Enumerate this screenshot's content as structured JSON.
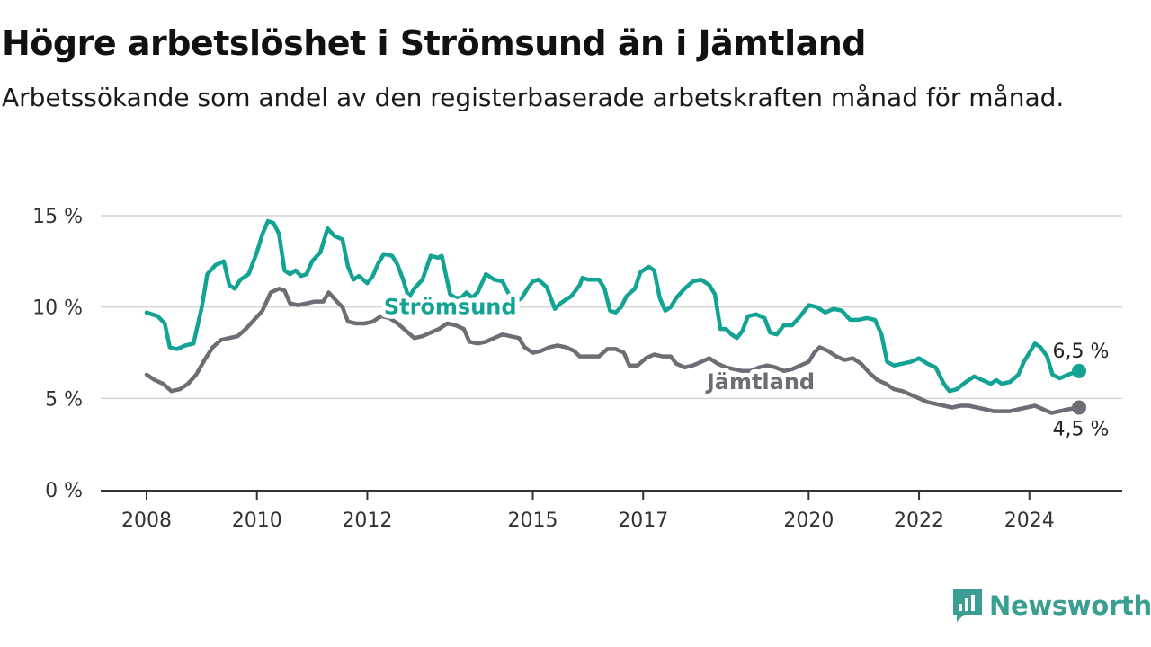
{
  "header": {
    "title": "Högre arbetslöshet i Strömsund än i Jämtland",
    "subtitle": "Arbetssökande som andel av den registerbaserade arbetskraften månad för månad."
  },
  "brand": {
    "name": "Newsworthy",
    "icon": "newsworthy-logo-icon",
    "color": "#3a9f91"
  },
  "chart_data": {
    "type": "line",
    "title": "Högre arbetslöshet i Strömsund än i Jämtland",
    "subtitle": "Arbetssökande som andel av den registerbaserade arbetskraften månad för månad.",
    "xlim": [
      2008.0,
      2025.8
    ],
    "ylim": [
      0,
      15
    ],
    "y_ticks": [
      0,
      5,
      10,
      15
    ],
    "y_tick_labels": [
      "0 %",
      "5 %",
      "10 %",
      "15 %"
    ],
    "x_ticks": [
      2008,
      2010,
      2012,
      2015,
      2017,
      2020,
      2022,
      2024
    ],
    "x_tick_labels": [
      "2008",
      "2010",
      "2012",
      "2015",
      "2017",
      "2020",
      "2022",
      "2024"
    ],
    "grid": "horizontal",
    "legend": "inline labels",
    "series": [
      {
        "name": "Strömsund",
        "color": "#12a394",
        "end_label": "6,5 %",
        "points": [
          [
            2008.0,
            9.7
          ],
          [
            2008.2,
            9.5
          ],
          [
            2008.33,
            9.1
          ],
          [
            2008.42,
            7.8
          ],
          [
            2008.55,
            7.7
          ],
          [
            2008.7,
            7.9
          ],
          [
            2008.85,
            8.0
          ],
          [
            2009.0,
            10.0
          ],
          [
            2009.1,
            11.8
          ],
          [
            2009.25,
            12.3
          ],
          [
            2009.4,
            12.5
          ],
          [
            2009.5,
            11.2
          ],
          [
            2009.6,
            11.0
          ],
          [
            2009.7,
            11.5
          ],
          [
            2009.85,
            11.8
          ],
          [
            2010.0,
            13.0
          ],
          [
            2010.1,
            14.0
          ],
          [
            2010.2,
            14.7
          ],
          [
            2010.3,
            14.6
          ],
          [
            2010.4,
            14.0
          ],
          [
            2010.5,
            12.0
          ],
          [
            2010.6,
            11.8
          ],
          [
            2010.7,
            12.0
          ],
          [
            2010.8,
            11.7
          ],
          [
            2010.9,
            11.8
          ],
          [
            2011.0,
            12.5
          ],
          [
            2011.15,
            13.0
          ],
          [
            2011.28,
            14.3
          ],
          [
            2011.4,
            13.9
          ],
          [
            2011.55,
            13.7
          ],
          [
            2011.65,
            12.2
          ],
          [
            2011.75,
            11.5
          ],
          [
            2011.85,
            11.7
          ],
          [
            2012.0,
            11.3
          ],
          [
            2012.1,
            11.7
          ],
          [
            2012.2,
            12.4
          ],
          [
            2012.3,
            12.9
          ],
          [
            2012.45,
            12.8
          ],
          [
            2012.55,
            12.3
          ],
          [
            2012.65,
            11.5
          ],
          [
            2012.75,
            10.5
          ],
          [
            2012.85,
            11.0
          ],
          [
            2013.0,
            11.5
          ],
          [
            2013.15,
            12.8
          ],
          [
            2013.28,
            12.7
          ],
          [
            2013.35,
            12.8
          ],
          [
            2013.5,
            10.7
          ],
          [
            2013.6,
            10.5
          ],
          [
            2013.7,
            10.5
          ],
          [
            2013.8,
            10.8
          ],
          [
            2013.9,
            10.5
          ],
          [
            2014.0,
            10.8
          ],
          [
            2014.15,
            11.8
          ],
          [
            2014.3,
            11.5
          ],
          [
            2014.45,
            11.4
          ],
          [
            2014.6,
            10.5
          ],
          [
            2014.7,
            10.3
          ],
          [
            2014.8,
            10.5
          ],
          [
            2014.9,
            11.0
          ],
          [
            2015.0,
            11.4
          ],
          [
            2015.1,
            11.5
          ],
          [
            2015.25,
            11.1
          ],
          [
            2015.4,
            9.9
          ],
          [
            2015.5,
            10.2
          ],
          [
            2015.6,
            10.4
          ],
          [
            2015.7,
            10.6
          ],
          [
            2015.85,
            11.2
          ],
          [
            2015.9,
            11.6
          ],
          [
            2016.0,
            11.5
          ],
          [
            2016.2,
            11.5
          ],
          [
            2016.3,
            11.0
          ],
          [
            2016.4,
            9.8
          ],
          [
            2016.5,
            9.7
          ],
          [
            2016.6,
            10.0
          ],
          [
            2016.7,
            10.6
          ],
          [
            2016.85,
            11.0
          ],
          [
            2016.95,
            11.9
          ],
          [
            2017.1,
            12.2
          ],
          [
            2017.2,
            12.0
          ],
          [
            2017.3,
            10.5
          ],
          [
            2017.4,
            9.8
          ],
          [
            2017.5,
            10.0
          ],
          [
            2017.6,
            10.5
          ],
          [
            2017.75,
            11.0
          ],
          [
            2017.9,
            11.4
          ],
          [
            2018.05,
            11.5
          ],
          [
            2018.2,
            11.2
          ],
          [
            2018.3,
            10.7
          ],
          [
            2018.4,
            8.8
          ],
          [
            2018.5,
            8.8
          ],
          [
            2018.6,
            8.5
          ],
          [
            2018.7,
            8.3
          ],
          [
            2018.8,
            8.7
          ],
          [
            2018.9,
            9.5
          ],
          [
            2019.05,
            9.6
          ],
          [
            2019.2,
            9.4
          ],
          [
            2019.3,
            8.6
          ],
          [
            2019.42,
            8.5
          ],
          [
            2019.55,
            9.0
          ],
          [
            2019.7,
            9.0
          ],
          [
            2019.85,
            9.5
          ],
          [
            2020.0,
            10.1
          ],
          [
            2020.15,
            10.0
          ],
          [
            2020.3,
            9.7
          ],
          [
            2020.45,
            9.9
          ],
          [
            2020.6,
            9.8
          ],
          [
            2020.75,
            9.3
          ],
          [
            2020.9,
            9.3
          ],
          [
            2021.05,
            9.4
          ],
          [
            2021.2,
            9.3
          ],
          [
            2021.32,
            8.5
          ],
          [
            2021.42,
            7.0
          ],
          [
            2021.55,
            6.8
          ],
          [
            2021.7,
            6.9
          ],
          [
            2021.85,
            7.0
          ],
          [
            2022.0,
            7.2
          ],
          [
            2022.15,
            6.9
          ],
          [
            2022.3,
            6.7
          ],
          [
            2022.45,
            5.8
          ],
          [
            2022.55,
            5.4
          ],
          [
            2022.68,
            5.5
          ],
          [
            2022.85,
            5.9
          ],
          [
            2023.0,
            6.2
          ],
          [
            2023.15,
            6.0
          ],
          [
            2023.3,
            5.8
          ],
          [
            2023.4,
            6.0
          ],
          [
            2023.5,
            5.8
          ],
          [
            2023.65,
            5.9
          ],
          [
            2023.8,
            6.3
          ],
          [
            2023.9,
            7.0
          ],
          [
            2024.0,
            7.5
          ],
          [
            2024.1,
            8.0
          ],
          [
            2024.2,
            7.8
          ],
          [
            2024.32,
            7.3
          ],
          [
            2024.42,
            6.3
          ],
          [
            2024.55,
            6.1
          ],
          [
            2024.7,
            6.3
          ],
          [
            2024.9,
            6.5
          ]
        ]
      },
      {
        "name": "Jämtland",
        "color": "#6e6d75",
        "end_label": "4,5 %",
        "points": [
          [
            2008.0,
            6.3
          ],
          [
            2008.15,
            6.0
          ],
          [
            2008.3,
            5.8
          ],
          [
            2008.45,
            5.4
          ],
          [
            2008.6,
            5.5
          ],
          [
            2008.75,
            5.8
          ],
          [
            2008.9,
            6.3
          ],
          [
            2009.05,
            7.1
          ],
          [
            2009.2,
            7.8
          ],
          [
            2009.35,
            8.2
          ],
          [
            2009.5,
            8.3
          ],
          [
            2009.65,
            8.4
          ],
          [
            2009.8,
            8.8
          ],
          [
            2009.95,
            9.3
          ],
          [
            2010.1,
            9.8
          ],
          [
            2010.25,
            10.8
          ],
          [
            2010.4,
            11.0
          ],
          [
            2010.5,
            10.9
          ],
          [
            2010.6,
            10.2
          ],
          [
            2010.75,
            10.1
          ],
          [
            2010.9,
            10.2
          ],
          [
            2011.05,
            10.3
          ],
          [
            2011.2,
            10.3
          ],
          [
            2011.3,
            10.8
          ],
          [
            2011.45,
            10.3
          ],
          [
            2011.55,
            10.0
          ],
          [
            2011.65,
            9.2
          ],
          [
            2011.8,
            9.1
          ],
          [
            2011.95,
            9.1
          ],
          [
            2012.1,
            9.2
          ],
          [
            2012.25,
            9.5
          ],
          [
            2012.4,
            9.4
          ],
          [
            2012.55,
            9.1
          ],
          [
            2012.7,
            8.7
          ],
          [
            2012.85,
            8.3
          ],
          [
            2013.0,
            8.4
          ],
          [
            2013.15,
            8.6
          ],
          [
            2013.3,
            8.8
          ],
          [
            2013.45,
            9.1
          ],
          [
            2013.6,
            9.0
          ],
          [
            2013.75,
            8.8
          ],
          [
            2013.85,
            8.1
          ],
          [
            2014.0,
            8.0
          ],
          [
            2014.15,
            8.1
          ],
          [
            2014.3,
            8.3
          ],
          [
            2014.45,
            8.5
          ],
          [
            2014.6,
            8.4
          ],
          [
            2014.75,
            8.3
          ],
          [
            2014.85,
            7.8
          ],
          [
            2015.0,
            7.5
          ],
          [
            2015.15,
            7.6
          ],
          [
            2015.3,
            7.8
          ],
          [
            2015.45,
            7.9
          ],
          [
            2015.6,
            7.8
          ],
          [
            2015.75,
            7.6
          ],
          [
            2015.85,
            7.3
          ],
          [
            2016.0,
            7.3
          ],
          [
            2016.2,
            7.3
          ],
          [
            2016.35,
            7.7
          ],
          [
            2016.5,
            7.7
          ],
          [
            2016.65,
            7.5
          ],
          [
            2016.75,
            6.8
          ],
          [
            2016.9,
            6.8
          ],
          [
            2017.05,
            7.2
          ],
          [
            2017.2,
            7.4
          ],
          [
            2017.35,
            7.3
          ],
          [
            2017.5,
            7.3
          ],
          [
            2017.6,
            6.9
          ],
          [
            2017.75,
            6.7
          ],
          [
            2017.9,
            6.8
          ],
          [
            2018.05,
            7.0
          ],
          [
            2018.2,
            7.2
          ],
          [
            2018.35,
            6.9
          ],
          [
            2018.5,
            6.7
          ],
          [
            2018.65,
            6.6
          ],
          [
            2018.8,
            6.5
          ],
          [
            2018.95,
            6.5
          ],
          [
            2019.1,
            6.7
          ],
          [
            2019.25,
            6.8
          ],
          [
            2019.4,
            6.7
          ],
          [
            2019.55,
            6.5
          ],
          [
            2019.7,
            6.6
          ],
          [
            2019.85,
            6.8
          ],
          [
            2020.0,
            7.0
          ],
          [
            2020.1,
            7.5
          ],
          [
            2020.2,
            7.8
          ],
          [
            2020.35,
            7.6
          ],
          [
            2020.5,
            7.3
          ],
          [
            2020.65,
            7.1
          ],
          [
            2020.8,
            7.2
          ],
          [
            2020.95,
            6.9
          ],
          [
            2021.1,
            6.4
          ],
          [
            2021.25,
            6.0
          ],
          [
            2021.4,
            5.8
          ],
          [
            2021.55,
            5.5
          ],
          [
            2021.7,
            5.4
          ],
          [
            2021.85,
            5.2
          ],
          [
            2022.0,
            5.0
          ],
          [
            2022.15,
            4.8
          ],
          [
            2022.3,
            4.7
          ],
          [
            2022.45,
            4.6
          ],
          [
            2022.6,
            4.5
          ],
          [
            2022.75,
            4.6
          ],
          [
            2022.9,
            4.6
          ],
          [
            2023.05,
            4.5
          ],
          [
            2023.2,
            4.4
          ],
          [
            2023.35,
            4.3
          ],
          [
            2023.5,
            4.3
          ],
          [
            2023.65,
            4.3
          ],
          [
            2023.8,
            4.4
          ],
          [
            2023.95,
            4.5
          ],
          [
            2024.1,
            4.6
          ],
          [
            2024.25,
            4.4
          ],
          [
            2024.4,
            4.2
          ],
          [
            2024.55,
            4.3
          ],
          [
            2024.7,
            4.4
          ],
          [
            2024.9,
            4.5
          ]
        ]
      }
    ]
  }
}
